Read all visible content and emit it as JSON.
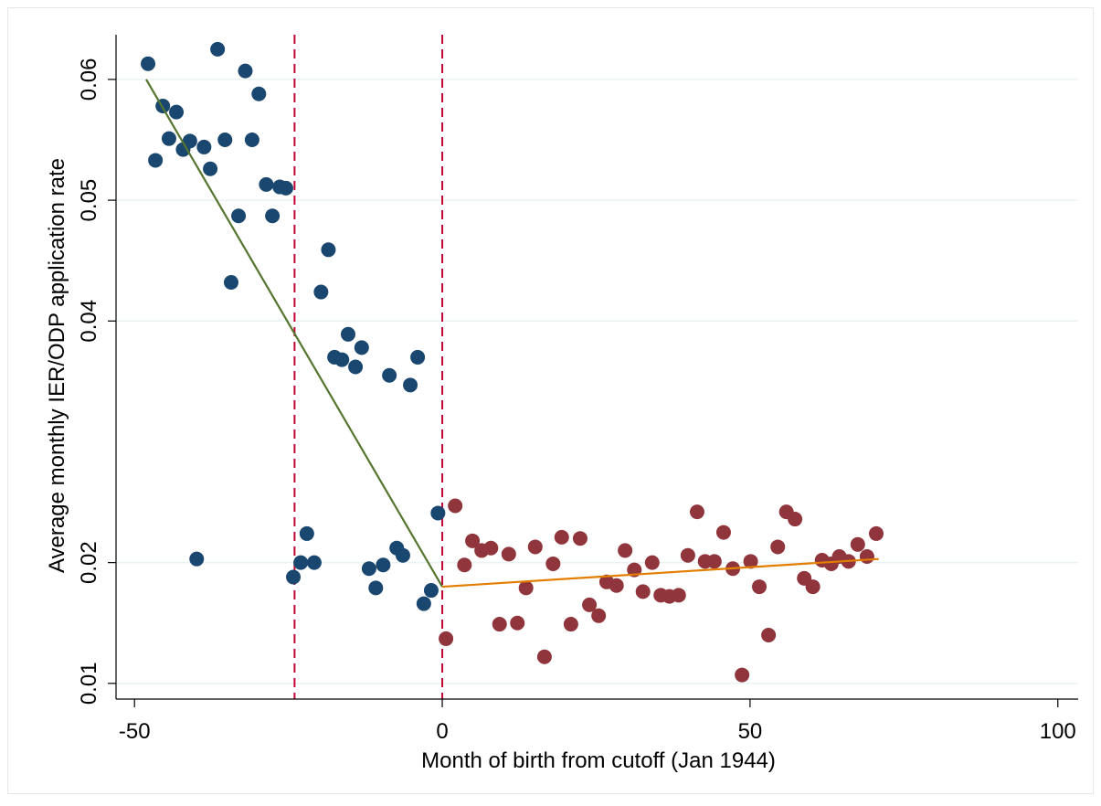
{
  "chart_data": {
    "type": "scatter",
    "xlabel": "Month of birth from cutoff (Jan 1944)",
    "ylabel": "Average monthly IER/ODP application rate",
    "xlim": [
      -53,
      103.3
    ],
    "ylim": [
      0.0087,
      0.0637
    ],
    "xticks": [
      -50,
      0,
      50,
      100
    ],
    "yticks": [
      0.01,
      0.02,
      0.04,
      0.05,
      0.06
    ],
    "grid": true,
    "series": [
      {
        "color": "#1a476f",
        "x": [
          -47.8,
          -46.6,
          -45.4,
          -44.4,
          -43.2,
          -42.1,
          -41.0,
          -39.9,
          -38.7,
          -37.7,
          -36.5,
          -35.3,
          -34.3,
          -33.1,
          -32.0,
          -30.9,
          -29.8,
          -28.6,
          -27.6,
          -26.4,
          -25.4,
          -24.2,
          -23.0,
          -22.0,
          -20.8,
          -19.7,
          -18.5,
          -17.5,
          -16.3,
          -15.3,
          -14.1,
          -13.1,
          -11.9,
          -10.8,
          -9.6,
          -8.6,
          -7.4,
          -6.4,
          -5.2,
          -4.0,
          -3.0,
          -1.8,
          -0.7
        ],
        "values": [
          0.0613,
          0.0533,
          0.0578,
          0.0551,
          0.0573,
          0.0542,
          0.0549,
          0.0203,
          0.0544,
          0.0526,
          0.0625,
          0.055,
          0.0432,
          0.0487,
          0.0607,
          0.055,
          0.0588,
          0.0513,
          0.0487,
          0.0511,
          0.051,
          0.0188,
          0.02,
          0.0224,
          0.02,
          0.0424,
          0.0459,
          0.037,
          0.0368,
          0.0389,
          0.0362,
          0.0378,
          0.0195,
          0.0179,
          0.0198,
          0.0355,
          0.0212,
          0.0206,
          0.0347,
          0.037,
          0.0166,
          0.0177,
          0.0241
        ]
      },
      {
        "color": "#90353b",
        "x": [
          0.6,
          2.1,
          3.6,
          4.9,
          6.4,
          7.9,
          9.3,
          10.8,
          12.2,
          13.6,
          15.1,
          16.6,
          18.0,
          19.4,
          20.9,
          22.4,
          23.9,
          25.4,
          26.7,
          28.3,
          29.7,
          31.2,
          32.6,
          34.1,
          35.5,
          36.9,
          38.4,
          39.9,
          41.4,
          42.7,
          44.2,
          45.7,
          47.2,
          48.7,
          50.1,
          51.5,
          53.0,
          54.5,
          55.9,
          57.3,
          58.8,
          60.2,
          61.7,
          63.2,
          64.5,
          66.0,
          67.5,
          69.0,
          70.5
        ],
        "values": [
          0.0137,
          0.0247,
          0.0198,
          0.0218,
          0.021,
          0.0212,
          0.0149,
          0.0207,
          0.015,
          0.0179,
          0.0213,
          0.0122,
          0.0199,
          0.0221,
          0.0149,
          0.022,
          0.0165,
          0.0156,
          0.0184,
          0.0181,
          0.021,
          0.0194,
          0.0176,
          0.02,
          0.0173,
          0.0172,
          0.0173,
          0.0206,
          0.0242,
          0.0201,
          0.0201,
          0.0225,
          0.0195,
          0.0107,
          0.0201,
          0.018,
          0.014,
          0.0213,
          0.0242,
          0.0236,
          0.0187,
          0.018,
          0.0202,
          0.0199,
          0.0205,
          0.0201,
          0.0215,
          0.0205,
          0.0224
        ]
      }
    ],
    "fit_lines": [
      {
        "color": "#55752f",
        "x": [
          -48.1,
          0
        ],
        "values": [
          0.06,
          0.018
        ]
      },
      {
        "color": "#e37e00",
        "x": [
          0,
          70.9
        ],
        "values": [
          0.018,
          0.0203
        ]
      }
    ],
    "vlines": [
      {
        "x": -24,
        "color": "#c10534"
      },
      {
        "x": 0,
        "color": "#c10534"
      }
    ]
  }
}
